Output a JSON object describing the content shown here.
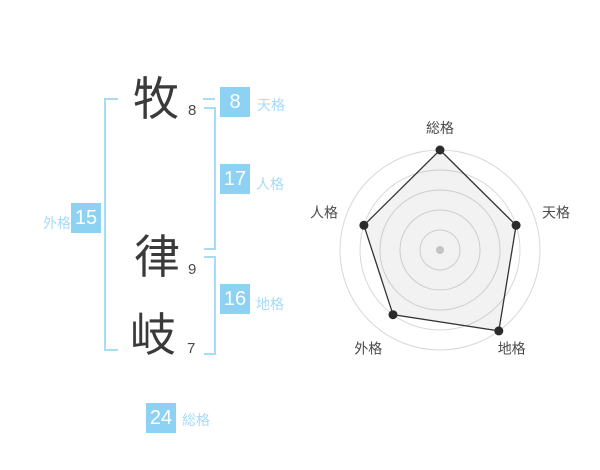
{
  "name_panel": {
    "characters": [
      {
        "char": "牧",
        "strokes": "8",
        "role": "surname"
      },
      {
        "char": "律",
        "strokes": "9",
        "role": "given"
      },
      {
        "char": "岐",
        "strokes": "7",
        "role": "given"
      }
    ],
    "kaku": [
      {
        "id": "tenkaku",
        "label": "天格",
        "value": "8"
      },
      {
        "id": "jinkaku",
        "label": "人格",
        "value": "17"
      },
      {
        "id": "chikaku",
        "label": "地格",
        "value": "16"
      },
      {
        "id": "gaikaku",
        "label": "外格",
        "value": "15"
      },
      {
        "id": "soukaku",
        "label": "総格",
        "value": "24"
      }
    ],
    "colors": {
      "badge_bg": "#8dd1f3",
      "badge_text": "#ffffff",
      "kaku_label": "#a5daf8",
      "bracket": "#a6dcf5",
      "character": "#3a3a3a",
      "stroke_count": "#4a4a4a"
    }
  },
  "chart_data": {
    "type": "radar",
    "axes": [
      "総格",
      "天格",
      "地格",
      "外格",
      "人格"
    ],
    "values": [
      5,
      4,
      5,
      4,
      4
    ],
    "max": 5,
    "rings": 5,
    "grid": "concentric-circles",
    "legend": "none",
    "ring_color": "#d8d8d8",
    "polygon_stroke": "#333333",
    "polygon_fill": "rgba(0,0,0,0.05)",
    "point_color": "#2b2b2b",
    "center_dot_color": "#c3c3c3",
    "label_color": "#4a4a4a"
  }
}
